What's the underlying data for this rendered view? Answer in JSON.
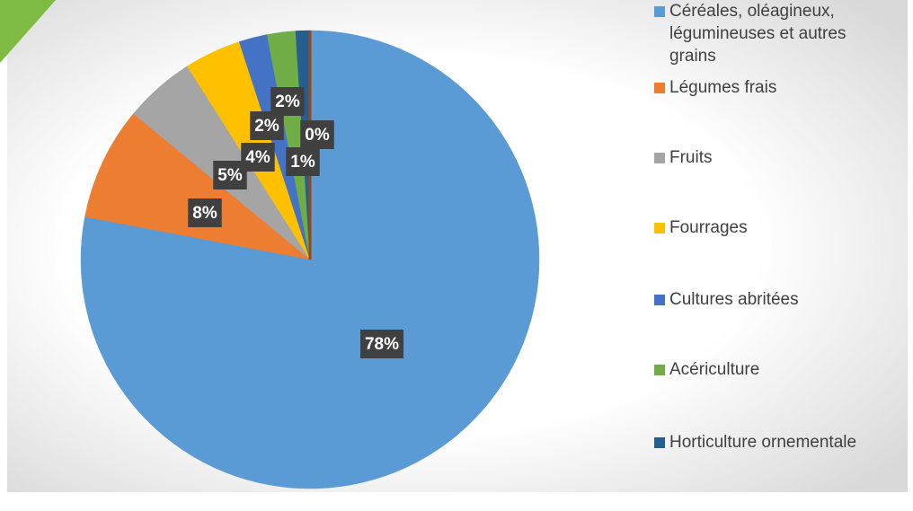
{
  "chart_data": {
    "type": "pie",
    "categories": [
      "Céréales, oléagineux, légumineuses et autres grains",
      "Légumes frais",
      "Fruits",
      "Fourrages",
      "Cultures abritées",
      "Acériculture",
      "Horticulture ornementale",
      null
    ],
    "values": [
      78,
      8,
      5,
      4,
      2,
      2,
      1,
      0
    ],
    "value_labels": [
      "78%",
      "8%",
      "5%",
      "4%",
      "2%",
      "2%",
      "1%",
      "0%"
    ],
    "colors": [
      "#5b9bd5",
      "#ed7d31",
      "#a5a5a5",
      "#ffc000",
      "#4472c4",
      "#70ad47",
      "#255e91",
      "#9e480e"
    ],
    "legend": "right"
  }
}
